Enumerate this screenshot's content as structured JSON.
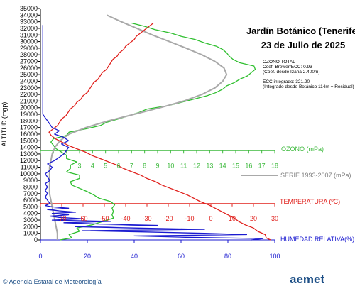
{
  "chart_data": {
    "type": "line",
    "title": "Jardín Botánico (Tenerife)",
    "subtitle": "23 de Julio de 2025",
    "ylabel": "ALTITUD (mgp)",
    "yticks": [
      0,
      1000,
      2000,
      3000,
      4000,
      5000,
      6000,
      7000,
      8000,
      9000,
      10000,
      11000,
      12000,
      13000,
      14000,
      15000,
      16000,
      17000,
      18000,
      19000,
      20000,
      21000,
      22000,
      23000,
      24000,
      25000,
      26000,
      27000,
      28000,
      29000,
      30000,
      31000,
      32000,
      33000,
      34000,
      35000
    ],
    "ylim": [
      0,
      35000
    ],
    "info": {
      "lines_top": [
        "OZONO TOTAL",
        "Coef. Brewer/ECC: 0.93",
        "(Coef. desde Izaña 2.400m)"
      ],
      "lines_bottom": [
        "ECC integrado: 321.20",
        "(Integrado desde Botánico 114m + Residual)"
      ]
    },
    "axes": {
      "ozone": {
        "label": "OZONO (mPa)",
        "range": [
          0,
          18
        ],
        "ticks": [
          0,
          1,
          2,
          3,
          4,
          5,
          6,
          7,
          8,
          9,
          10,
          11,
          12,
          13,
          14,
          15,
          16,
          17,
          18
        ],
        "tick_labels": [
          "3",
          "4",
          "5",
          "6",
          "7",
          "8",
          "9",
          "10",
          "11",
          "12",
          "13",
          "14",
          "15",
          "16",
          "17",
          "18"
        ],
        "altitude": 13500,
        "color": "#3cb93c"
      },
      "series_legend": {
        "label": "SERIE 1993-2007 (mPa)",
        "color": "#a9a9a9"
      },
      "temperature": {
        "label": "TEMPERATURA (ºC)",
        "range": [
          -80,
          30
        ],
        "ticks": [
          -80,
          -70,
          -60,
          -50,
          -40,
          -30,
          -20,
          -10,
          0,
          10,
          20,
          30
        ],
        "tick_labels": [
          "-70",
          "-60",
          "-50",
          "-40",
          "-30",
          "-20",
          "-10",
          "0",
          "10",
          "20",
          "30"
        ],
        "altitude": 5500,
        "color": "#e0201c"
      },
      "humidity": {
        "label": "HUMEDAD RELATIVA(%)",
        "range": [
          0,
          100
        ],
        "ticks": [
          0,
          20,
          40,
          60,
          80,
          100
        ],
        "tick_labels": [
          "0",
          "20",
          "40",
          "60",
          "80",
          "100"
        ],
        "color": "#1a1ad0"
      }
    },
    "series": [
      {
        "name": "OZONO (mPa)",
        "color": "#2fbf2f",
        "points": [
          [
            1.5,
            0
          ],
          [
            2.4,
            300
          ],
          [
            2.2,
            800
          ],
          [
            3.0,
            1300
          ],
          [
            2.8,
            1800
          ],
          [
            4.0,
            2300
          ],
          [
            4.8,
            2800
          ],
          [
            5.6,
            3300
          ],
          [
            5.5,
            3800
          ],
          [
            5.6,
            4300
          ],
          [
            5.5,
            4800
          ],
          [
            5.7,
            5300
          ],
          [
            5.4,
            5800
          ],
          [
            4.5,
            6300
          ],
          [
            4.1,
            6800
          ],
          [
            3.6,
            7300
          ],
          [
            3.0,
            7800
          ],
          [
            2.4,
            8300
          ],
          [
            2.3,
            8800
          ],
          [
            3.0,
            9300
          ],
          [
            3.0,
            9800
          ],
          [
            2.0,
            10300
          ],
          [
            2.3,
            10800
          ],
          [
            2.3,
            11300
          ],
          [
            2.8,
            11800
          ],
          [
            2.0,
            12300
          ],
          [
            2.0,
            12800
          ],
          [
            1.6,
            13300
          ],
          [
            1.2,
            13800
          ],
          [
            1.0,
            14300
          ],
          [
            0.8,
            14800
          ],
          [
            1.0,
            15300
          ],
          [
            2.0,
            15800
          ],
          [
            2.2,
            16300
          ],
          [
            3.5,
            16800
          ],
          [
            4.6,
            17300
          ],
          [
            5.1,
            17800
          ],
          [
            6.0,
            18300
          ],
          [
            6.8,
            18800
          ],
          [
            7.6,
            19300
          ],
          [
            8.2,
            19800
          ],
          [
            9.8,
            20300
          ],
          [
            10.8,
            20800
          ],
          [
            11.8,
            21300
          ],
          [
            12.8,
            21800
          ],
          [
            13.5,
            22300
          ],
          [
            14.0,
            22800
          ],
          [
            14.3,
            23300
          ],
          [
            14.9,
            23800
          ],
          [
            15.3,
            24300
          ],
          [
            15.9,
            24800
          ],
          [
            16.2,
            25300
          ],
          [
            16.5,
            25800
          ],
          [
            16.4,
            26300
          ],
          [
            15.3,
            26800
          ],
          [
            14.8,
            27300
          ],
          [
            14.5,
            27800
          ],
          [
            14.3,
            28300
          ],
          [
            14.0,
            28800
          ],
          [
            13.5,
            29300
          ],
          [
            12.6,
            29800
          ],
          [
            11.9,
            30300
          ],
          [
            10.8,
            30800
          ],
          [
            10.0,
            31300
          ],
          [
            8.8,
            31800
          ],
          [
            8.0,
            32300
          ],
          [
            7.0,
            32800
          ]
        ]
      },
      {
        "name": "SERIE 1993-2007 (mPa)",
        "color": "#a9a9a9",
        "points": [
          [
            1.3,
            0
          ],
          [
            1.3,
            1000
          ],
          [
            1.2,
            2000
          ],
          [
            1.1,
            3000
          ],
          [
            1.0,
            4000
          ],
          [
            0.9,
            5000
          ],
          [
            0.8,
            6000
          ],
          [
            0.7,
            7000
          ],
          [
            0.7,
            8000
          ],
          [
            0.7,
            9000
          ],
          [
            0.7,
            10000
          ],
          [
            0.7,
            11000
          ],
          [
            0.8,
            12000
          ],
          [
            0.9,
            13000
          ],
          [
            1.1,
            14000
          ],
          [
            1.5,
            15000
          ],
          [
            2.2,
            16000
          ],
          [
            3.5,
            17000
          ],
          [
            5.2,
            18000
          ],
          [
            7.2,
            19000
          ],
          [
            9.2,
            20000
          ],
          [
            11.0,
            21000
          ],
          [
            12.4,
            22000
          ],
          [
            13.4,
            23000
          ],
          [
            14.0,
            24000
          ],
          [
            14.3,
            25000
          ],
          [
            14.1,
            26000
          ],
          [
            13.4,
            27000
          ],
          [
            12.4,
            28000
          ],
          [
            11.2,
            29000
          ],
          [
            9.9,
            30000
          ],
          [
            8.6,
            31000
          ],
          [
            7.4,
            32000
          ],
          [
            6.2,
            33000
          ],
          [
            5.1,
            34000
          ]
        ]
      },
      {
        "name": "TEMPERATURA (ºC)",
        "color": "#e0201c",
        "points": [
          [
            28,
            0
          ],
          [
            26,
            300
          ],
          [
            25.5,
            800
          ],
          [
            22,
            1300
          ],
          [
            20,
            1800
          ],
          [
            16,
            2300
          ],
          [
            13,
            2800
          ],
          [
            11,
            3300
          ],
          [
            8,
            3800
          ],
          [
            5,
            4300
          ],
          [
            2,
            4800
          ],
          [
            -1,
            5300
          ],
          [
            -5,
            5800
          ],
          [
            -8,
            6300
          ],
          [
            -11,
            6800
          ],
          [
            -15,
            7300
          ],
          [
            -19,
            7800
          ],
          [
            -23,
            8300
          ],
          [
            -26,
            8800
          ],
          [
            -30,
            9300
          ],
          [
            -33,
            9800
          ],
          [
            -37,
            10300
          ],
          [
            -41,
            10800
          ],
          [
            -44,
            11300
          ],
          [
            -48,
            11800
          ],
          [
            -52,
            12300
          ],
          [
            -56,
            12800
          ],
          [
            -59,
            13300
          ],
          [
            -63,
            13800
          ],
          [
            -67,
            14300
          ],
          [
            -70,
            14800
          ],
          [
            -73,
            15300
          ],
          [
            -75,
            15800
          ],
          [
            -76,
            16300
          ],
          [
            -74,
            16800
          ],
          [
            -72,
            17300
          ],
          [
            -71,
            17800
          ],
          [
            -70,
            18300
          ],
          [
            -68,
            18800
          ],
          [
            -67,
            19300
          ],
          [
            -66,
            19800
          ],
          [
            -64,
            20300
          ],
          [
            -63,
            20800
          ],
          [
            -61,
            21300
          ],
          [
            -60,
            21800
          ],
          [
            -58,
            22300
          ],
          [
            -57,
            22800
          ],
          [
            -56,
            23300
          ],
          [
            -55,
            23800
          ],
          [
            -53,
            24300
          ],
          [
            -52,
            24800
          ],
          [
            -51,
            25300
          ],
          [
            -49,
            25800
          ],
          [
            -48,
            26300
          ],
          [
            -47,
            26800
          ],
          [
            -46,
            27300
          ],
          [
            -44,
            27800
          ],
          [
            -43,
            28300
          ],
          [
            -41,
            28800
          ],
          [
            -40,
            29300
          ],
          [
            -38,
            29800
          ],
          [
            -36,
            30300
          ],
          [
            -35,
            30800
          ],
          [
            -33,
            31300
          ],
          [
            -31,
            31800
          ],
          [
            -29,
            32300
          ],
          [
            -27,
            32800
          ]
        ]
      },
      {
        "name": "HUMEDAD RELATIVA(%)",
        "color": "#1a1ad0",
        "points": [
          [
            90,
            0
          ],
          [
            95,
            200
          ],
          [
            62,
            400
          ],
          [
            40,
            600
          ],
          [
            88,
            800
          ],
          [
            70,
            1000
          ],
          [
            45,
            1200
          ],
          [
            18,
            1400
          ],
          [
            70,
            1600
          ],
          [
            40,
            1800
          ],
          [
            15,
            2000
          ],
          [
            50,
            2200
          ],
          [
            25,
            2400
          ],
          [
            10,
            2600
          ],
          [
            30,
            2800
          ],
          [
            5,
            3000
          ],
          [
            18,
            3200
          ],
          [
            8,
            3400
          ],
          [
            4,
            3600
          ],
          [
            12,
            3800
          ],
          [
            5,
            4000
          ],
          [
            15,
            4200
          ],
          [
            8,
            4400
          ],
          [
            3,
            4600
          ],
          [
            12,
            4800
          ],
          [
            5,
            5000
          ],
          [
            2,
            5200
          ],
          [
            4,
            5500
          ],
          [
            3,
            6000
          ],
          [
            2,
            6500
          ],
          [
            3,
            7000
          ],
          [
            2,
            7500
          ],
          [
            3,
            8000
          ],
          [
            2,
            8500
          ],
          [
            4,
            9000
          ],
          [
            3,
            9500
          ],
          [
            2,
            10000
          ],
          [
            4,
            10500
          ],
          [
            5,
            11000
          ],
          [
            3,
            11500
          ],
          [
            6,
            12000
          ],
          [
            8,
            12500
          ],
          [
            10,
            13000
          ],
          [
            11,
            13500
          ],
          [
            12,
            14000
          ],
          [
            9,
            14500
          ],
          [
            12,
            15000
          ],
          [
            10,
            15500
          ],
          [
            6,
            16000
          ],
          [
            8,
            16500
          ],
          [
            5,
            17000
          ],
          [
            4,
            17500
          ],
          [
            3,
            18000
          ],
          [
            2,
            18500
          ],
          [
            1,
            19000
          ],
          [
            1,
            20000
          ],
          [
            1,
            22000
          ],
          [
            1,
            25000
          ],
          [
            1,
            28000
          ],
          [
            1,
            30000
          ],
          [
            1,
            32500
          ]
        ]
      }
    ]
  },
  "footer": {
    "credit": "© Agencia Estatal de Meteorología",
    "brand": "aemet"
  }
}
